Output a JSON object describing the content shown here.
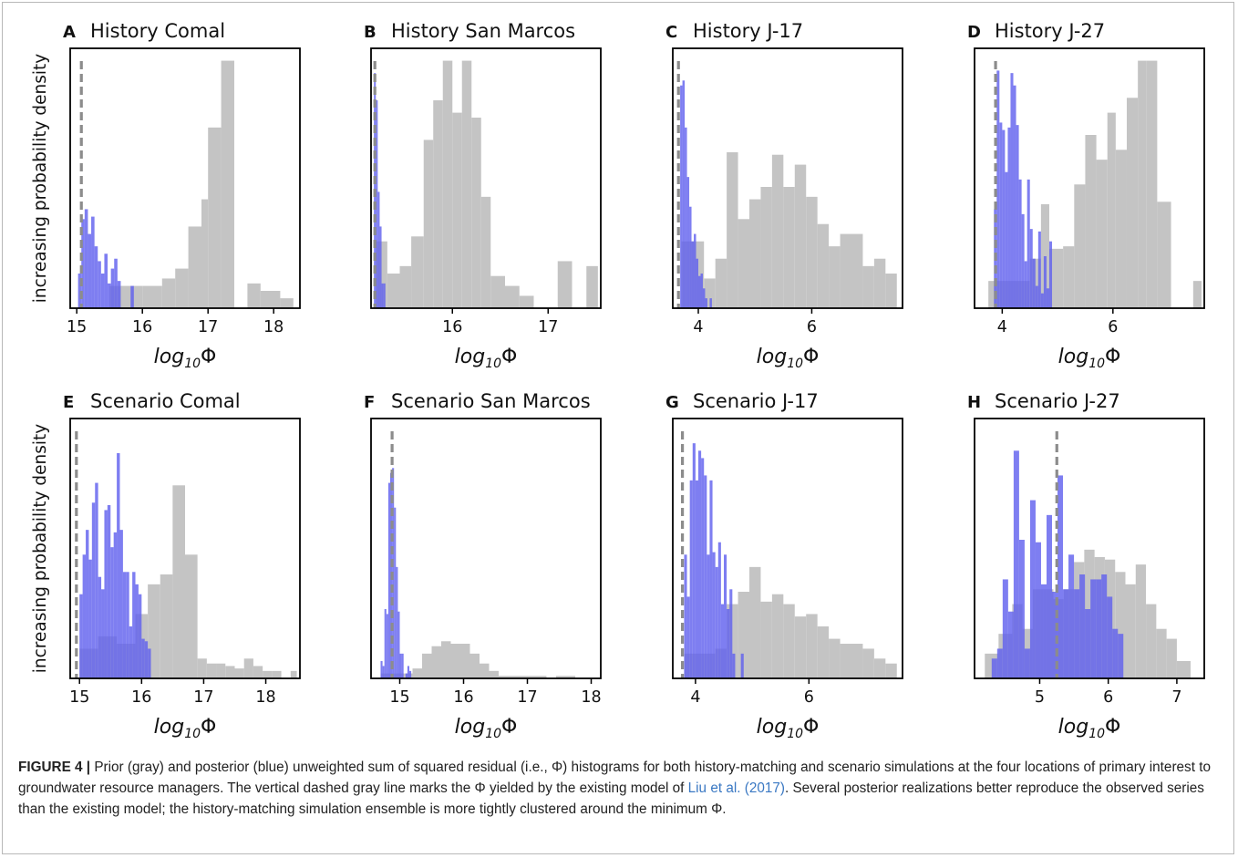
{
  "figure": {
    "ylabel": "increasing probability density",
    "xlabel_main": "log",
    "xlabel_sub": "10",
    "xlabel_sym": "Φ",
    "colors": {
      "prior": "#c4c4c4",
      "posterior": "#6262ee",
      "existing_model": "#8c8c8c"
    }
  },
  "chart_data": [
    {
      "type": "bar",
      "panel": "A",
      "title": "History Comal",
      "xlim": [
        14.9,
        18.4
      ],
      "xticks": [
        15,
        16,
        17,
        18
      ],
      "ylim": [
        0,
        1.05
      ],
      "dashed_x": 15.07,
      "prior": {
        "edges": [
          15.5,
          16.0,
          16.3,
          16.5,
          16.7,
          16.9,
          17.0,
          17.2,
          17.4,
          17.6,
          17.8,
          18.1,
          18.3
        ],
        "heights": [
          0.09,
          0.09,
          0.12,
          0.16,
          0.33,
          0.44,
          0.73,
          1.0,
          0.0,
          0.1,
          0.07,
          0.04
        ]
      },
      "posterior": {
        "edges": [
          15.02,
          15.07,
          15.12,
          15.17,
          15.22,
          15.27,
          15.32,
          15.37,
          15.42,
          15.47,
          15.52,
          15.57,
          15.62,
          15.67,
          15.72,
          15.77,
          15.82,
          15.87
        ],
        "heights": [
          0.14,
          0.36,
          0.4,
          0.3,
          0.37,
          0.25,
          0.19,
          0.14,
          0.22,
          0.1,
          0.16,
          0.2,
          0.11,
          0.0,
          0.0,
          0.0,
          0.09
        ]
      }
    },
    {
      "type": "bar",
      "panel": "B",
      "title": "History San Marcos",
      "xlim": [
        15.15,
        17.55
      ],
      "xticks": [
        16,
        17
      ],
      "ylim": [
        0,
        1.05
      ],
      "dashed_x": 15.19,
      "prior": {
        "edges": [
          15.2,
          15.32,
          15.45,
          15.57,
          15.7,
          15.8,
          15.9,
          16.0,
          16.1,
          16.2,
          16.3,
          16.4,
          16.55,
          16.7,
          16.85,
          17.0,
          17.1,
          17.25,
          17.4,
          17.52
        ],
        "heights": [
          0.27,
          0.14,
          0.17,
          0.29,
          0.68,
          0.84,
          1.0,
          0.79,
          1.0,
          0.77,
          0.45,
          0.13,
          0.09,
          0.05,
          0.0,
          0.0,
          0.19,
          0.0,
          0.17
        ]
      },
      "posterior": {
        "edges": [
          15.18,
          15.2,
          15.22,
          15.24,
          15.26,
          15.28,
          15.3
        ],
        "heights": [
          0.95,
          0.84,
          0.47,
          0.33,
          0.1,
          0.1
        ]
      }
    },
    {
      "type": "bar",
      "panel": "C",
      "title": "History J-17",
      "xlim": [
        3.55,
        7.6
      ],
      "xticks": [
        4,
        6
      ],
      "ylim": [
        0,
        1.05
      ],
      "dashed_x": 3.65,
      "prior": {
        "edges": [
          3.7,
          4.1,
          4.3,
          4.5,
          4.7,
          4.9,
          5.1,
          5.3,
          5.5,
          5.7,
          5.9,
          6.1,
          6.3,
          6.5,
          6.7,
          6.9,
          7.1,
          7.3,
          7.5
        ],
        "heights": [
          0.27,
          0.12,
          0.2,
          0.63,
          0.36,
          0.44,
          0.49,
          0.62,
          0.49,
          0.58,
          0.45,
          0.34,
          0.25,
          0.3,
          0.3,
          0.17,
          0.2,
          0.14
        ]
      },
      "posterior": {
        "edges": [
          3.68,
          3.72,
          3.76,
          3.8,
          3.84,
          3.88,
          3.92,
          3.96,
          4.0,
          4.04,
          4.08,
          4.12,
          4.16,
          4.2,
          4.24
        ],
        "heights": [
          0.9,
          0.92,
          0.73,
          0.53,
          0.41,
          0.27,
          0.3,
          0.2,
          0.13,
          0.14,
          0.08,
          0.04,
          0.0,
          0.04
        ]
      }
    },
    {
      "type": "bar",
      "panel": "D",
      "title": "History J-27",
      "xlim": [
        3.5,
        7.65
      ],
      "xticks": [
        4,
        6
      ],
      "ylim": [
        0,
        1.05
      ],
      "dashed_x": 3.88,
      "prior": {
        "edges": [
          3.75,
          4.5,
          4.7,
          4.85,
          5.1,
          5.3,
          5.5,
          5.7,
          5.9,
          6.05,
          6.25,
          6.45,
          6.6,
          6.8,
          7.05,
          7.45,
          7.6
        ],
        "heights": [
          0.11,
          0.2,
          0.42,
          0.24,
          0.25,
          0.5,
          0.7,
          0.6,
          0.79,
          0.64,
          0.85,
          1.0,
          1.0,
          0.43,
          0.0,
          0.11
        ]
      },
      "posterior": {
        "edges": [
          3.85,
          3.9,
          3.95,
          4.0,
          4.05,
          4.1,
          4.15,
          4.2,
          4.25,
          4.3,
          4.35,
          4.4,
          4.45,
          4.5,
          4.55,
          4.6,
          4.65,
          4.7,
          4.75,
          4.8,
          4.85,
          4.9
        ],
        "heights": [
          0.4,
          0.96,
          0.75,
          0.72,
          0.55,
          0.73,
          0.95,
          0.9,
          0.74,
          0.52,
          0.38,
          0.19,
          0.52,
          0.32,
          0.2,
          0.09,
          0.31,
          0.06,
          0.21,
          0.08,
          0.27
        ]
      }
    },
    {
      "type": "bar",
      "panel": "E",
      "title": "Scenario Comal",
      "xlim": [
        14.85,
        18.55
      ],
      "xticks": [
        15,
        16,
        17,
        18
      ],
      "ylim": [
        0,
        1.05
      ],
      "dashed_x": 14.95,
      "prior": {
        "edges": [
          15.0,
          15.3,
          15.6,
          15.9,
          16.1,
          16.3,
          16.5,
          16.7,
          16.9,
          17.05,
          17.2,
          17.35,
          17.5,
          17.65,
          17.8,
          17.95,
          18.1,
          18.25,
          18.4,
          18.5
        ],
        "heights": [
          0.12,
          0.17,
          0.14,
          0.26,
          0.38,
          0.42,
          0.78,
          0.5,
          0.08,
          0.06,
          0.06,
          0.05,
          0.04,
          0.08,
          0.05,
          0.03,
          0.03,
          0.0,
          0.03
        ]
      },
      "posterior": {
        "edges": [
          15.0,
          15.05,
          15.1,
          15.15,
          15.2,
          15.25,
          15.3,
          15.35,
          15.4,
          15.45,
          15.5,
          15.55,
          15.6,
          15.65,
          15.7,
          15.75,
          15.8,
          15.85,
          15.9,
          15.95,
          16.0,
          16.05,
          16.1,
          16.15
        ],
        "heights": [
          0.34,
          0.5,
          0.6,
          0.48,
          0.71,
          0.79,
          0.41,
          0.36,
          0.68,
          0.7,
          0.53,
          0.59,
          0.91,
          0.6,
          0.43,
          0.43,
          0.21,
          0.43,
          0.38,
          0.34,
          0.16,
          0.15,
          0.12
        ]
      }
    },
    {
      "type": "bar",
      "panel": "F",
      "title": "Scenario San Marcos",
      "xlim": [
        14.55,
        18.15
      ],
      "xticks": [
        15,
        16,
        17,
        18
      ],
      "ylim": [
        0,
        1.05
      ],
      "dashed_x": 14.88,
      "prior": {
        "edges": [
          14.7,
          15.2,
          15.35,
          15.5,
          15.65,
          15.8,
          15.95,
          16.1,
          16.25,
          16.4,
          16.55,
          16.7,
          16.85,
          17.0,
          17.15,
          17.3,
          17.45,
          17.6,
          17.75
        ],
        "heights": [
          0.02,
          0.04,
          0.1,
          0.13,
          0.15,
          0.14,
          0.14,
          0.1,
          0.06,
          0.03,
          0.01,
          0.01,
          0.01,
          0.01,
          0.01,
          0.0,
          0.01,
          0.01
        ]
      },
      "posterior": {
        "edges": [
          14.7,
          14.73,
          14.76,
          14.79,
          14.82,
          14.85,
          14.88,
          14.91,
          14.94,
          14.97,
          15.0,
          15.03,
          15.06,
          15.09,
          15.12,
          15.15,
          15.18
        ],
        "heights": [
          0.07,
          0.05,
          0.28,
          0.26,
          0.79,
          0.83,
          0.85,
          0.69,
          0.45,
          0.27,
          0.1,
          0.1,
          0.0,
          0.02,
          0.05,
          0.03
        ]
      }
    },
    {
      "type": "bar",
      "panel": "G",
      "title": "Scenario J-17",
      "xlim": [
        3.6,
        7.65
      ],
      "xticks": [
        4,
        6
      ],
      "ylim": [
        0,
        1.05
      ],
      "dashed_x": 3.77,
      "prior": {
        "edges": [
          3.8,
          4.35,
          4.55,
          4.75,
          4.95,
          5.15,
          5.35,
          5.55,
          5.75,
          5.95,
          6.15,
          6.35,
          6.55,
          6.75,
          6.95,
          7.15,
          7.35,
          7.55
        ],
        "heights": [
          0.1,
          0.12,
          0.3,
          0.35,
          0.45,
          0.31,
          0.34,
          0.3,
          0.25,
          0.26,
          0.21,
          0.16,
          0.14,
          0.14,
          0.12,
          0.08,
          0.06
        ]
      },
      "posterior": {
        "edges": [
          3.8,
          3.85,
          3.9,
          3.95,
          4.0,
          4.05,
          4.1,
          4.15,
          4.2,
          4.25,
          4.3,
          4.35,
          4.4,
          4.45,
          4.5,
          4.55,
          4.6,
          4.65,
          4.7,
          4.75,
          4.8,
          4.85,
          4.9
        ],
        "heights": [
          0.5,
          0.33,
          0.8,
          0.95,
          0.8,
          0.92,
          0.89,
          0.82,
          0.5,
          0.8,
          0.51,
          0.45,
          0.55,
          0.3,
          0.5,
          0.28,
          0.36,
          0.1,
          0.0,
          0.0,
          0.1,
          0.0
        ]
      }
    },
    {
      "type": "bar",
      "panel": "H",
      "title": "Scenario J-27",
      "xlim": [
        4.05,
        7.4
      ],
      "xticks": [
        5,
        6,
        7
      ],
      "ylim": [
        0,
        1.05
      ],
      "dashed_x": 5.25,
      "prior": {
        "edges": [
          4.2,
          4.4,
          4.6,
          4.75,
          4.9,
          5.05,
          5.2,
          5.35,
          5.5,
          5.65,
          5.8,
          5.95,
          6.1,
          6.25,
          6.4,
          6.55,
          6.7,
          6.85,
          7.0,
          7.2
        ],
        "heights": [
          0.1,
          0.18,
          0.3,
          0.2,
          0.36,
          0.36,
          0.32,
          0.36,
          0.47,
          0.52,
          0.49,
          0.48,
          0.43,
          0.38,
          0.46,
          0.3,
          0.2,
          0.16,
          0.07
        ]
      },
      "posterior": {
        "edges": [
          4.3,
          4.38,
          4.46,
          4.54,
          4.62,
          4.7,
          4.78,
          4.86,
          4.94,
          5.02,
          5.1,
          5.18,
          5.26,
          5.34,
          5.42,
          5.5,
          5.58,
          5.66,
          5.74,
          5.82,
          5.9,
          5.98,
          6.06,
          6.14,
          6.22
        ],
        "heights": [
          0.08,
          0.12,
          0.4,
          0.27,
          0.92,
          0.56,
          0.12,
          0.72,
          0.55,
          0.38,
          0.66,
          0.35,
          0.82,
          0.36,
          0.5,
          0.36,
          0.42,
          0.28,
          0.4,
          0.4,
          0.42,
          0.33,
          0.2,
          0.18
        ]
      }
    }
  ],
  "caption": {
    "lead": "FIGURE 4 |",
    "body": " Prior (gray) and posterior (blue) unweighted sum of squared residual (i.e., Φ) histograms for both history-matching and scenario simulations at the four locations of primary interest to groundwater resource managers. The vertical dashed gray line marks the Φ yielded by the existing model of ",
    "ref": "Liu et al. (2017)",
    "tail": ". Several posterior realizations better reproduce the observed series than the existing model; the history-matching simulation ensemble is more tightly clustered around the minimum Φ."
  }
}
